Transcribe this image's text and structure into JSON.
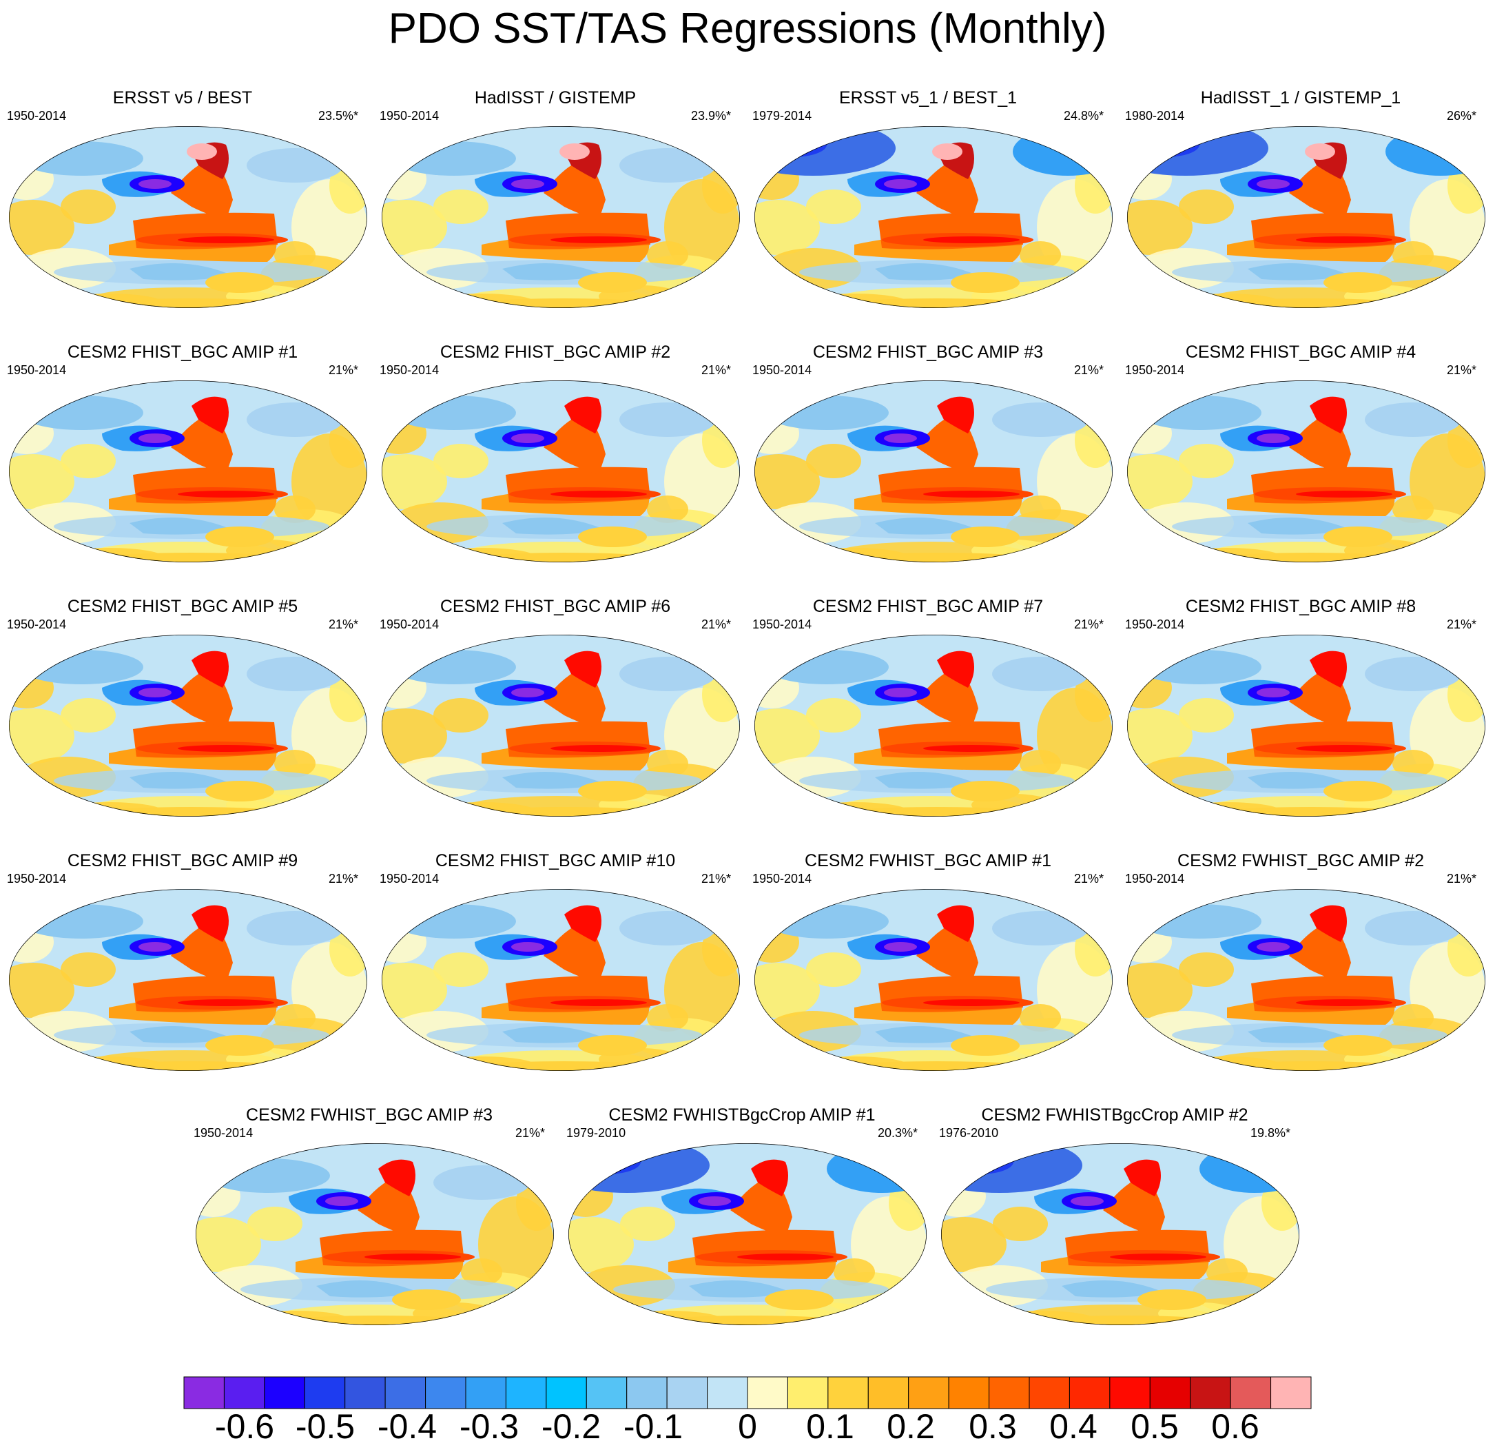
{
  "chart_data": {
    "type": "heatmap",
    "title": "PDO SST/TAS Regressions (Monthly)",
    "panels": [
      {
        "title": "ERSST v5 / BEST",
        "period": "1950-2014",
        "pct": "23.5%*"
      },
      {
        "title": "HadISST / GISTEMP",
        "period": "1950-2014",
        "pct": "23.9%*"
      },
      {
        "title": "ERSST v5_1 / BEST_1",
        "period": "1979-2014",
        "pct": "24.8%*"
      },
      {
        "title": "HadISST_1 / GISTEMP_1",
        "period": "1980-2014",
        "pct": "26%*"
      },
      {
        "title": "CESM2 FHIST_BGC AMIP #1",
        "period": "1950-2014",
        "pct": "21%*"
      },
      {
        "title": "CESM2 FHIST_BGC AMIP #2",
        "period": "1950-2014",
        "pct": "21%*"
      },
      {
        "title": "CESM2 FHIST_BGC AMIP #3",
        "period": "1950-2014",
        "pct": "21%*"
      },
      {
        "title": "CESM2 FHIST_BGC AMIP #4",
        "period": "1950-2014",
        "pct": "21%*"
      },
      {
        "title": "CESM2 FHIST_BGC AMIP #5",
        "period": "1950-2014",
        "pct": "21%*"
      },
      {
        "title": "CESM2 FHIST_BGC AMIP #6",
        "period": "1950-2014",
        "pct": "21%*"
      },
      {
        "title": "CESM2 FHIST_BGC AMIP #7",
        "period": "1950-2014",
        "pct": "21%*"
      },
      {
        "title": "CESM2 FHIST_BGC AMIP #8",
        "period": "1950-2014",
        "pct": "21%*"
      },
      {
        "title": "CESM2 FHIST_BGC AMIP #9",
        "period": "1950-2014",
        "pct": "21%*"
      },
      {
        "title": "CESM2 FHIST_BGC AMIP #10",
        "period": "1950-2014",
        "pct": "21%*"
      },
      {
        "title": "CESM2 FWHIST_BGC AMIP #1",
        "period": "1950-2014",
        "pct": "21%*"
      },
      {
        "title": "CESM2 FWHIST_BGC AMIP #2",
        "period": "1950-2014",
        "pct": "21%*"
      },
      {
        "title": "CESM2 FWHIST_BGC AMIP #3",
        "period": "1950-2014",
        "pct": "21%*"
      },
      {
        "title": "CESM2 FWHISTBgcCrop AMIP #1",
        "period": "1979-2010",
        "pct": "20.3%*"
      },
      {
        "title": "CESM2 FWHISTBgcCrop AMIP #2",
        "period": "1976-2010",
        "pct": "19.8%*"
      }
    ],
    "colorbar": {
      "labels": [
        "-0.6",
        "-0.5",
        "-0.4",
        "-0.3",
        "-0.2",
        "-0.1",
        "0",
        "0.1",
        "0.2",
        "0.3",
        "0.4",
        "0.5",
        "0.6"
      ],
      "colors": [
        "#8a2be2",
        "#5a1ef0",
        "#1c00ff",
        "#1e3cf0",
        "#3355e0",
        "#3c6ee6",
        "#3d87ee",
        "#33a0f5",
        "#1eb4ff",
        "#00c3ff",
        "#55c3f5",
        "#8cc8f0",
        "#a9d3f2",
        "#c2e4f6",
        "#fffac8",
        "#ffee6e",
        "#ffd23c",
        "#ffbe28",
        "#ffa014",
        "#ff8200",
        "#ff6400",
        "#ff4600",
        "#ff2800",
        "#ff0a00",
        "#e60000",
        "#c81414",
        "#e45a5a",
        "#ffb4b4"
      ]
    }
  }
}
